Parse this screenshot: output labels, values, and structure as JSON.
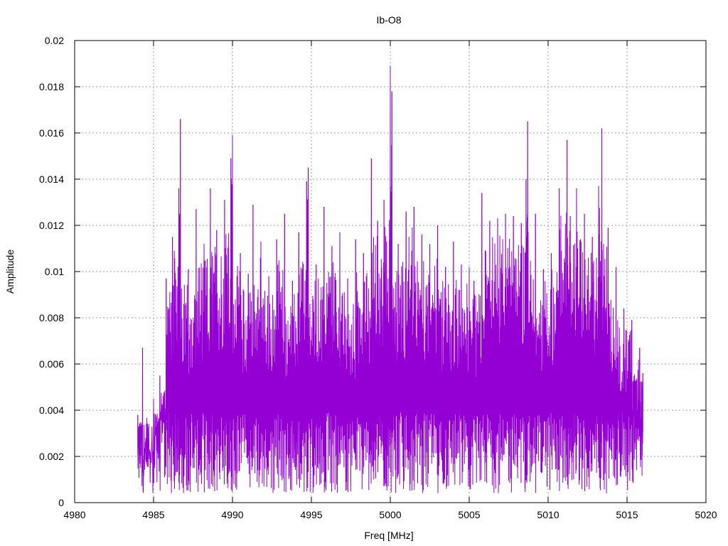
{
  "chart_data": {
    "type": "line",
    "title": "Ib-O8",
    "xlabel": "Freq [MHz]",
    "ylabel": "Amplitude",
    "xlim": [
      4980,
      5020
    ],
    "ylim": [
      0,
      0.02
    ],
    "x_ticks": [
      4980,
      4985,
      4990,
      4995,
      5000,
      5005,
      5010,
      5015,
      5020
    ],
    "x_tick_labels": [
      "4980",
      "4985",
      "4990",
      "4995",
      "5000",
      "5005",
      "5010",
      "5015",
      "5020"
    ],
    "y_ticks": [
      0,
      0.002,
      0.004,
      0.006,
      0.008,
      0.01,
      0.012,
      0.014,
      0.016,
      0.018,
      0.02
    ],
    "y_tick_labels": [
      "0",
      "0.002",
      "0.004",
      "0.006",
      "0.008",
      "0.01",
      "0.012",
      "0.014",
      "0.016",
      "0.018",
      "0.02"
    ],
    "grid": true,
    "series": [
      {
        "color": "#9400d3",
        "x": [
          4984.0,
          4984.3,
          4984.6,
          4985.0,
          4985.4,
          4985.8,
          4986.2,
          4986.6,
          4986.7,
          4987.2,
          4987.7,
          4988.2,
          4988.6,
          4989.0,
          4989.5,
          4989.9,
          4990.0,
          4990.5,
          4991.0,
          4991.3,
          4991.8,
          4992.3,
          4992.8,
          4993.3,
          4993.8,
          4994.2,
          4994.7,
          4994.8,
          4995.3,
          4995.8,
          4996.3,
          4996.8,
          4997.3,
          4997.8,
          4998.3,
          4998.8,
          4999.2,
          4999.6,
          5000.0,
          5000.1,
          5000.5,
          5001.0,
          5001.5,
          5002.0,
          5002.5,
          5003.0,
          5003.5,
          5004.0,
          5004.5,
          5005.0,
          5005.3,
          5005.8,
          5006.3,
          5006.8,
          5007.3,
          5007.8,
          5008.3,
          5008.6,
          5008.7,
          5009.2,
          5009.7,
          5010.2,
          5010.7,
          5011.2,
          5011.4,
          5011.8,
          5012.3,
          5012.8,
          5013.2,
          5013.4,
          5013.8,
          5014.3,
          5014.8,
          5015.3,
          5015.8,
          5016.0
        ],
        "y": [
          0.0038,
          0.0067,
          0.0028,
          0.0045,
          0.0055,
          0.0097,
          0.0115,
          0.0136,
          0.0166,
          0.0101,
          0.0127,
          0.0112,
          0.0136,
          0.0118,
          0.0131,
          0.0149,
          0.0159,
          0.0108,
          0.0099,
          0.0129,
          0.0113,
          0.0098,
          0.0114,
          0.0125,
          0.0096,
          0.0117,
          0.0139,
          0.0145,
          0.0103,
          0.0128,
          0.0111,
          0.0117,
          0.0097,
          0.0114,
          0.0108,
          0.0149,
          0.0122,
          0.0131,
          0.0189,
          0.0178,
          0.0112,
          0.0126,
          0.0128,
          0.0116,
          0.0112,
          0.012,
          0.0102,
          0.0113,
          0.0103,
          0.0102,
          0.0096,
          0.0134,
          0.0122,
          0.0123,
          0.0125,
          0.0124,
          0.0121,
          0.014,
          0.0165,
          0.0125,
          0.0101,
          0.0108,
          0.0136,
          0.0157,
          0.0124,
          0.0136,
          0.0125,
          0.0115,
          0.0137,
          0.0162,
          0.0119,
          0.0102,
          0.0084,
          0.0079,
          0.0067,
          0.0056
        ]
      }
    ]
  }
}
